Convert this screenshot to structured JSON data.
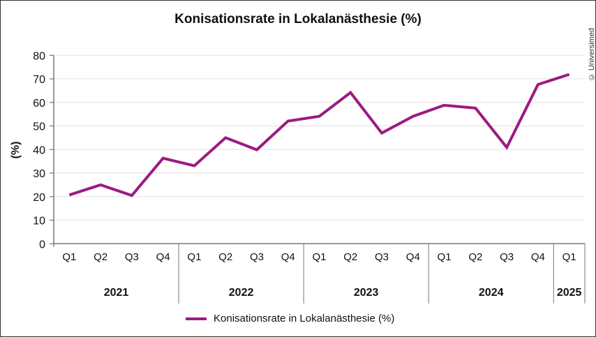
{
  "chart_data": {
    "type": "line",
    "title": "Konisationsrate in Lokalanästhesie (%)",
    "ylabel": "(%)",
    "xlabel": "",
    "ylim": [
      0,
      80
    ],
    "yticks": [
      "0",
      "10",
      "20",
      "30",
      "40",
      "50",
      "60",
      "70",
      "80"
    ],
    "grid": true,
    "legend_position": "bottom",
    "categories": [
      "Q1",
      "Q2",
      "Q3",
      "Q4",
      "Q1",
      "Q2",
      "Q3",
      "Q4",
      "Q1",
      "Q2",
      "Q3",
      "Q4",
      "Q1",
      "Q2",
      "Q3",
      "Q4",
      "Q1"
    ],
    "groups": [
      {
        "label": "2021",
        "count": 4
      },
      {
        "label": "2022",
        "count": 4
      },
      {
        "label": "2023",
        "count": 4
      },
      {
        "label": "2024",
        "count": 4
      },
      {
        "label": "2025",
        "count": 1
      }
    ],
    "series": [
      {
        "name": "Konisationsrate in Lokalanästhesie (%)",
        "color": "#9c1a82",
        "values": [
          20.7,
          25.0,
          20.5,
          36.3,
          33.1,
          45.0,
          39.9,
          52.1,
          54.1,
          64.2,
          47.0,
          54.1,
          58.8,
          57.6,
          40.9,
          67.6,
          71.9
        ]
      }
    ]
  },
  "copyright": "© Universimed"
}
